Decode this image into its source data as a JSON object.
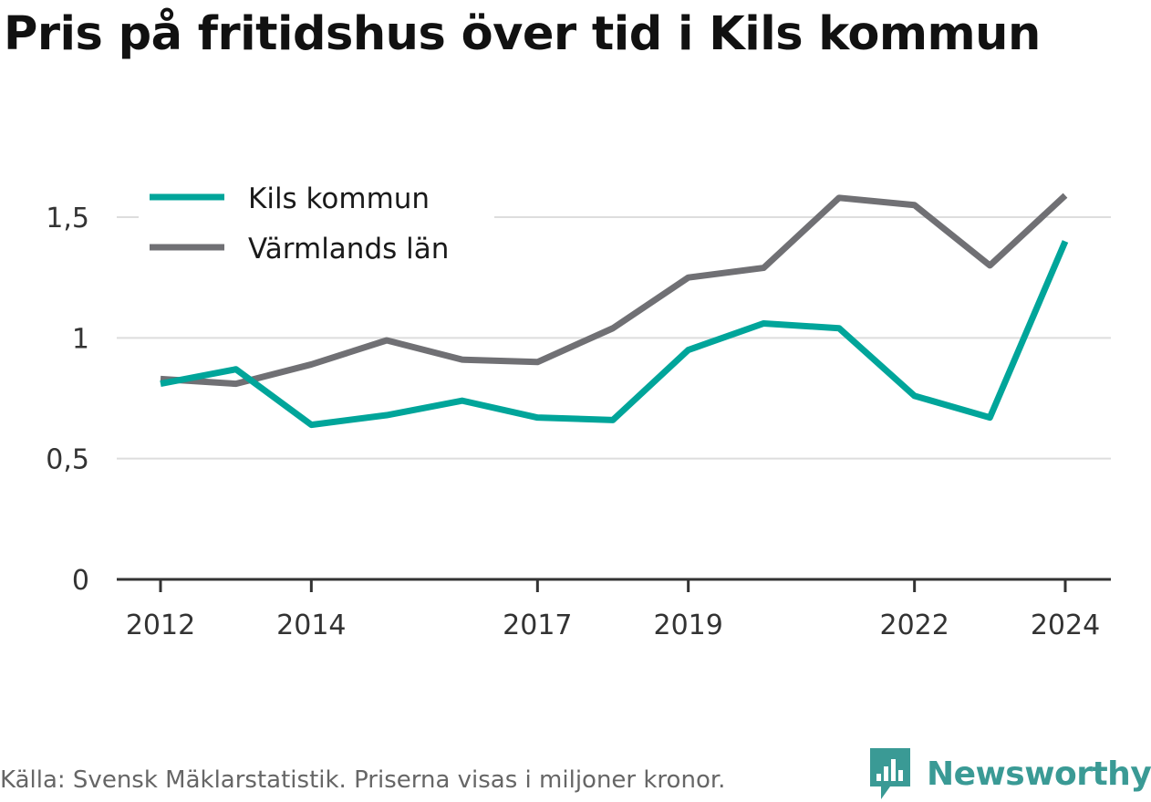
{
  "title": "Pris på fritidshus över tid i Kils kommun",
  "source_note": "Källa: Svensk Mäklarstatistik. Priserna visas i miljoner kronor.",
  "logo_label": "Newsworthy",
  "colors": {
    "kil": "#00a59a",
    "varmland": "#707074",
    "grid": "#dddddd",
    "axis": "#333333"
  },
  "chart_data": {
    "type": "line",
    "x": [
      2012,
      2013,
      2014,
      2015,
      2016,
      2017,
      2018,
      2019,
      2020,
      2021,
      2022,
      2023,
      2024
    ],
    "x_tick_values": [
      2012,
      2014,
      2017,
      2019,
      2022,
      2024
    ],
    "x_tick_labels": [
      "2012",
      "2014",
      "2017",
      "2019",
      "2022",
      "2024"
    ],
    "y_tick_values": [
      0,
      0.5,
      1,
      1.5
    ],
    "y_tick_labels": [
      "0",
      "0,5",
      "1",
      "1,5"
    ],
    "ylim": [
      0,
      1.6
    ],
    "grid": true,
    "legend_position": "top-left",
    "series": [
      {
        "name": "Kils kommun",
        "color": "#00a59a",
        "values": [
          0.81,
          0.87,
          0.64,
          0.68,
          0.74,
          0.67,
          0.66,
          0.95,
          1.06,
          1.04,
          0.76,
          0.67,
          1.4
        ]
      },
      {
        "name": "Värmlands län",
        "color": "#707074",
        "values": [
          0.83,
          0.81,
          0.89,
          0.99,
          0.91,
          0.9,
          1.04,
          1.25,
          1.29,
          1.58,
          1.55,
          1.3,
          1.59
        ]
      }
    ]
  }
}
